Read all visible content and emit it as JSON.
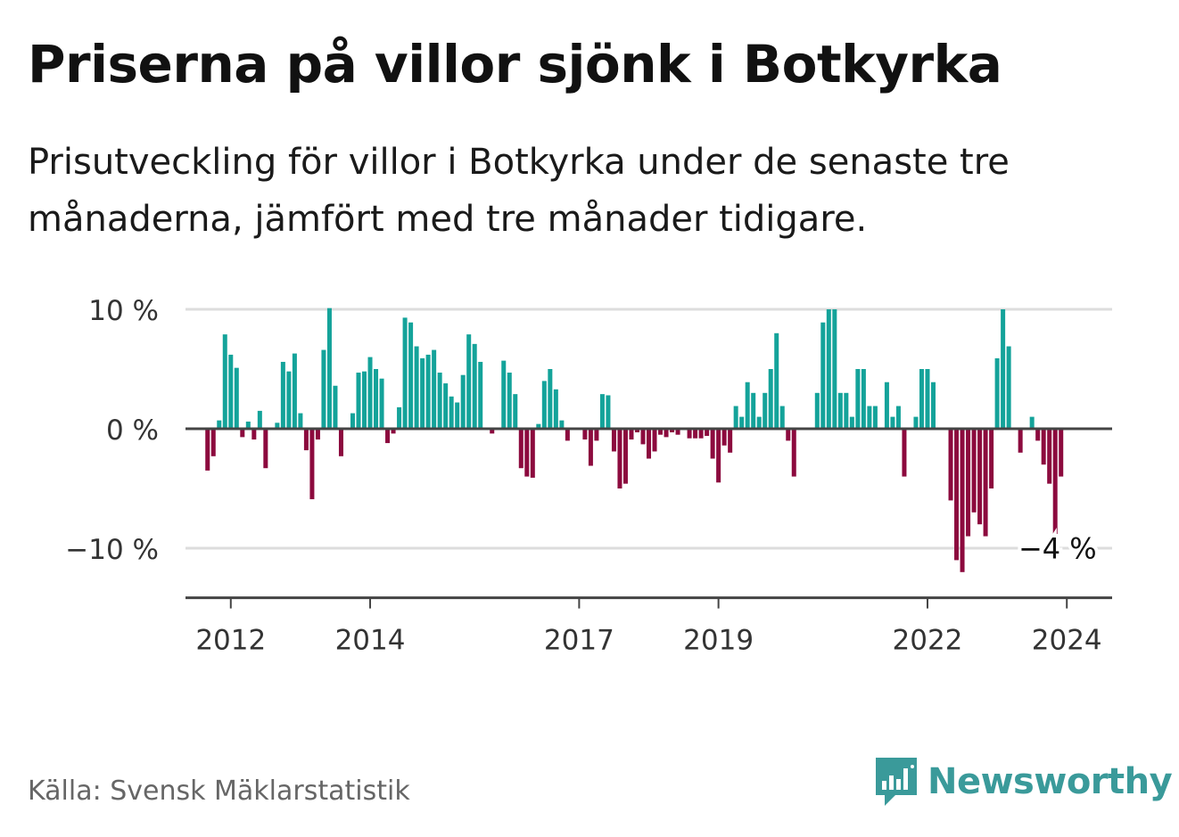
{
  "title": "Priserna på villor sjönk i Botkyrka",
  "subtitle": "Prisutveckling för villor i Botkyrka under de senaste tre månaderna, jämfört med tre månader tidigare.",
  "source": "Källa: Svensk Mäklarstatistik",
  "brand": "Newsworthy",
  "colors": {
    "positive": "#14a39a",
    "negative": "#8c0a3e",
    "grid": "#dddddd",
    "axis": "#444444",
    "brand": "#3a9a9a"
  },
  "chart_data": {
    "type": "bar",
    "title": "Priserna på villor sjönk i Botkyrka",
    "ylabel": "",
    "xlabel": "",
    "ylim": [
      -14,
      10
    ],
    "yticks": [
      10,
      0,
      -10
    ],
    "ytick_labels": [
      "10 %",
      "0 %",
      "−10 %"
    ],
    "x_start": 2011.6667,
    "x_step": 0.0833333,
    "xlim": [
      2011.35,
      2024.65
    ],
    "xticks": [
      2012,
      2014,
      2017,
      2019,
      2022,
      2024
    ],
    "xtick_labels": [
      "2012",
      "2014",
      "2017",
      "2019",
      "2022",
      "2024"
    ],
    "last_value_label": "−4 %",
    "values": [
      -3.5,
      -2.3,
      0.7,
      7.9,
      6.2,
      5.1,
      -0.7,
      0.6,
      -0.9,
      1.5,
      -3.3,
      0.0,
      0.5,
      5.6,
      4.8,
      6.3,
      1.3,
      -1.8,
      -5.9,
      -0.9,
      6.6,
      10.1,
      3.6,
      -2.3,
      0.0,
      1.3,
      4.7,
      4.8,
      6.0,
      5.0,
      4.2,
      -1.2,
      -0.4,
      1.8,
      9.3,
      8.9,
      6.9,
      5.9,
      6.2,
      6.6,
      4.7,
      3.8,
      2.7,
      2.2,
      4.5,
      7.9,
      7.1,
      5.6,
      0.1,
      -0.4,
      0.1,
      5.7,
      4.7,
      2.9,
      -3.3,
      -4.0,
      -4.1,
      0.4,
      4.0,
      5.0,
      3.3,
      0.7,
      -1.0,
      0.0,
      0.0,
      -0.9,
      -3.1,
      -1.0,
      2.9,
      2.8,
      -1.9,
      -5.0,
      -4.6,
      -0.9,
      -0.3,
      -1.3,
      -2.5,
      -1.9,
      -0.5,
      -0.7,
      -0.3,
      -0.5,
      0.0,
      -0.8,
      -0.8,
      -0.8,
      -0.6,
      -2.5,
      -4.5,
      -1.4,
      -2.0,
      1.9,
      1.0,
      3.9,
      3.0,
      1.0,
      3.0,
      5.0,
      8.0,
      1.9,
      -1.0,
      -4.0,
      0.0,
      0.0,
      0.0,
      3.0,
      8.9,
      10.0,
      10.0,
      3.0,
      3.0,
      1.0,
      5.0,
      5.0,
      1.9,
      1.9,
      0.0,
      3.9,
      1.0,
      1.9,
      -4.0,
      0.0,
      1.0,
      5.0,
      5.0,
      3.9,
      0.0,
      0.0,
      -6.0,
      -11.0,
      -12.0,
      -9.0,
      -7.0,
      -8.0,
      -9.0,
      -5.0,
      5.9,
      10.0,
      6.9,
      0.0,
      -2.0,
      0.0,
      1.0,
      -1.0,
      -3.0,
      -4.6,
      -9.0,
      -4.0
    ]
  }
}
